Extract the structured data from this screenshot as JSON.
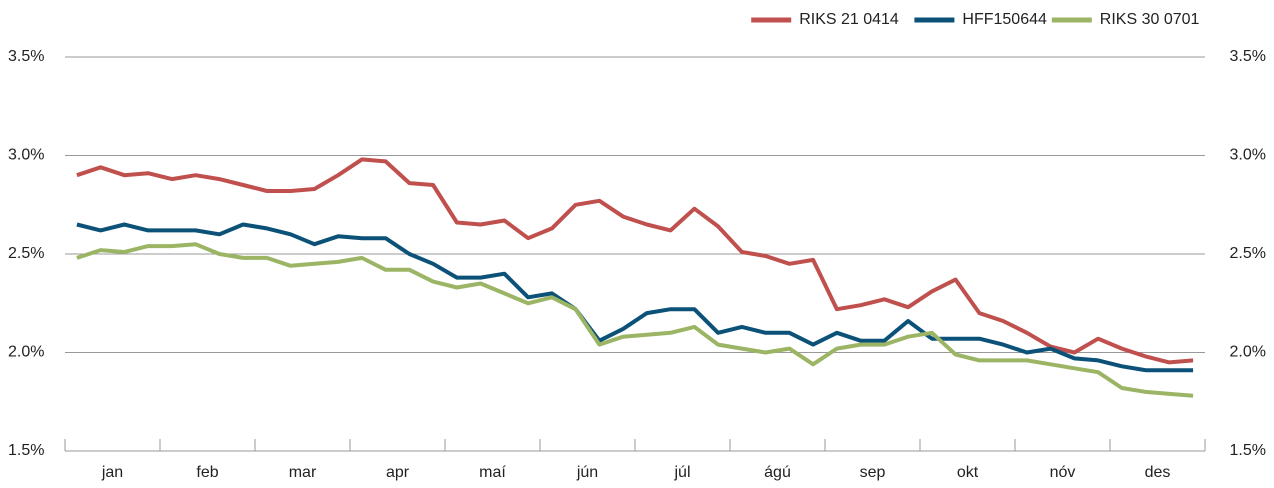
{
  "chart_data": {
    "type": "line",
    "categories": [
      "jan",
      null,
      null,
      null,
      "feb",
      null,
      null,
      null,
      "mar",
      null,
      null,
      null,
      "apr",
      null,
      null,
      null,
      "maí",
      null,
      null,
      null,
      "jún",
      null,
      null,
      null,
      "júl",
      null,
      null,
      null,
      "ágú",
      null,
      null,
      null,
      "sep",
      null,
      null,
      null,
      "okt",
      null,
      null,
      null,
      "nóv",
      null,
      null,
      null,
      "des",
      null,
      null,
      null
    ],
    "series": [
      {
        "name": "RIKS 21 0414",
        "color": "#c0504d",
        "values": [
          2.9,
          2.94,
          2.9,
          2.91,
          2.88,
          2.9,
          2.88,
          2.85,
          2.82,
          2.82,
          2.83,
          2.9,
          2.98,
          2.97,
          2.86,
          2.85,
          2.66,
          2.65,
          2.67,
          2.58,
          2.63,
          2.75,
          2.77,
          2.69,
          2.65,
          2.62,
          2.73,
          2.64,
          2.51,
          2.49,
          2.45,
          2.47,
          2.22,
          2.24,
          2.27,
          2.23,
          2.31,
          2.37,
          2.2,
          2.16,
          2.1,
          2.03,
          2.0,
          2.07,
          2.02,
          1.98,
          1.95,
          1.96
        ]
      },
      {
        "name": "HFF150644",
        "color": "#0b5178",
        "values": [
          2.65,
          2.62,
          2.65,
          2.62,
          2.62,
          2.62,
          2.6,
          2.65,
          2.63,
          2.6,
          2.55,
          2.59,
          2.58,
          2.58,
          2.5,
          2.45,
          2.38,
          2.38,
          2.4,
          2.28,
          2.3,
          2.22,
          2.06,
          2.12,
          2.2,
          2.22,
          2.22,
          2.1,
          2.13,
          2.1,
          2.1,
          2.04,
          2.1,
          2.06,
          2.06,
          2.16,
          2.07,
          2.07,
          2.07,
          2.04,
          2.0,
          2.02,
          1.97,
          1.96,
          1.93,
          1.91,
          1.91,
          1.91
        ]
      },
      {
        "name": "RIKS 30 0701",
        "color": "#9bb565",
        "values": [
          2.48,
          2.52,
          2.51,
          2.54,
          2.54,
          2.55,
          2.5,
          2.48,
          2.48,
          2.44,
          2.45,
          2.46,
          2.48,
          2.42,
          2.42,
          2.36,
          2.33,
          2.35,
          2.3,
          2.25,
          2.28,
          2.22,
          2.04,
          2.08,
          2.09,
          2.1,
          2.13,
          2.04,
          2.02,
          2.0,
          2.02,
          1.94,
          2.02,
          2.04,
          2.04,
          2.08,
          2.1,
          1.99,
          1.96,
          1.96,
          1.96,
          1.94,
          1.92,
          1.9,
          1.82,
          1.8,
          1.79,
          1.78
        ]
      }
    ],
    "ylim": [
      1.5,
      3.5
    ],
    "yticks": [
      {
        "value": 1.5,
        "label": "1.5%"
      },
      {
        "value": 2.0,
        "label": "2.0%"
      },
      {
        "value": 2.5,
        "label": "2.5%"
      },
      {
        "value": 3.0,
        "label": "3.0%"
      },
      {
        "value": 3.5,
        "label": "3.5%"
      }
    ],
    "y2lim": [
      1.5,
      3.5
    ],
    "y2ticks": [
      {
        "value": 1.5,
        "label": "1.5%"
      },
      {
        "value": 2.0,
        "label": "2.0%"
      },
      {
        "value": 2.5,
        "label": "2.5%"
      },
      {
        "value": 3.0,
        "label": "3.0%"
      },
      {
        "value": 3.5,
        "label": "3.5%"
      }
    ],
    "grid": true,
    "legend": "top-right"
  }
}
